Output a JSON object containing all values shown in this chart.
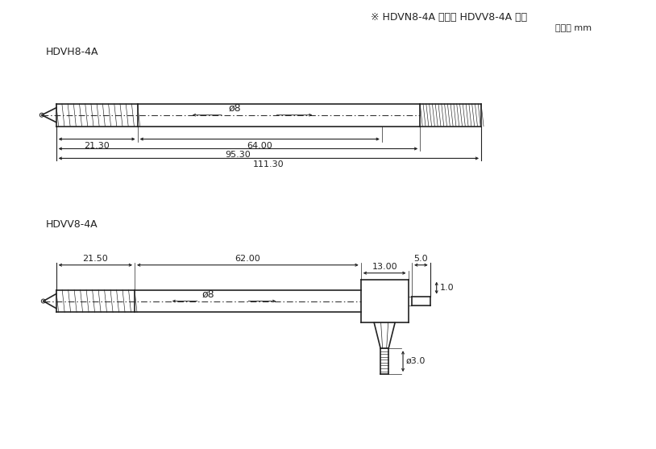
{
  "title_note": "※ HDVN8-4A 尺寸与 HDVV8-4A 相同",
  "unit_note": "单位： mm",
  "label_h": "HDVH8-4A",
  "label_v": "HDVV8-4A",
  "bg_color": "#ffffff",
  "line_color": "#222222",
  "h_dims": {
    "d21_30": "21.30",
    "d64_00": "64.00",
    "d95_30": "95.30",
    "d111_30": "111.30",
    "phi8": "ø8"
  },
  "v_dims": {
    "d21_50": "21.50",
    "d62_00": "62.00",
    "d5_0": "5.0",
    "d13_00": "13.00",
    "d1_0": "1.0",
    "d3_0": "ø3.0",
    "phi8": "ø8"
  }
}
